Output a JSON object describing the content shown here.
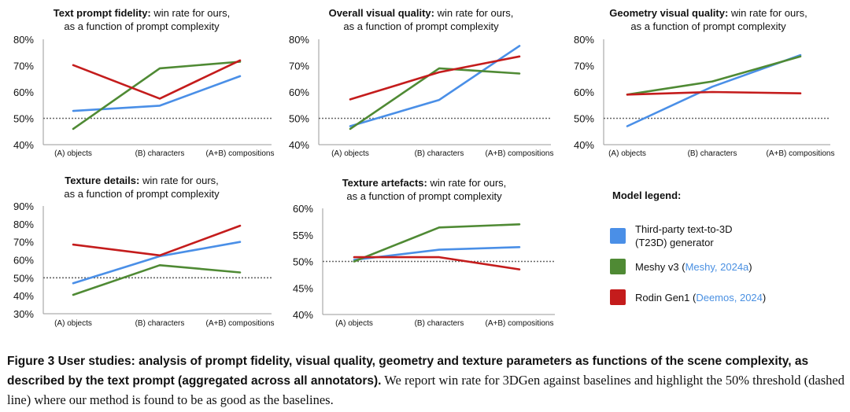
{
  "colors": {
    "third_party": "#4a8fe7",
    "meshy": "#4f8a34",
    "rodin": "#c41c1c",
    "threshold": "#666666",
    "axis": "#999999"
  },
  "chart_data": [
    {
      "type": "line",
      "title_bold": "Text prompt fidelity:",
      "title_rest": " win rate for ours,",
      "title_line2": "as a function of prompt complexity",
      "categories": [
        "(A) objects",
        "(B) characters",
        "(A+B) compositions"
      ],
      "yticks": [
        "40%",
        "50%",
        "60%",
        "70%",
        "80%"
      ],
      "ylim": [
        40,
        80
      ],
      "threshold": 50,
      "series": [
        {
          "name": "Third-party T23D",
          "key": "third_party",
          "values": [
            52.8,
            54.8,
            66.0
          ]
        },
        {
          "name": "Meshy v3",
          "key": "meshy",
          "values": [
            46.0,
            69.0,
            71.5
          ]
        },
        {
          "name": "Rodin Gen1",
          "key": "rodin",
          "values": [
            70.2,
            57.5,
            72.0
          ]
        }
      ]
    },
    {
      "type": "line",
      "title_bold": "Overall visual quality:",
      "title_rest": " win rate for ours,",
      "title_line2": "as a function of prompt complexity",
      "categories": [
        "(A) objects",
        "(B) characters",
        "(A+B) compositions"
      ],
      "yticks": [
        "40%",
        "50%",
        "60%",
        "70%",
        "80%"
      ],
      "ylim": [
        40,
        80
      ],
      "threshold": 50,
      "series": [
        {
          "name": "Third-party T23D",
          "key": "third_party",
          "values": [
            47.0,
            57.0,
            77.5
          ]
        },
        {
          "name": "Meshy v3",
          "key": "meshy",
          "values": [
            46.0,
            69.0,
            67.0
          ]
        },
        {
          "name": "Rodin Gen1",
          "key": "rodin",
          "values": [
            57.2,
            67.5,
            73.5
          ]
        }
      ]
    },
    {
      "type": "line",
      "title_bold": "Geometry visual quality:",
      "title_rest": " win rate for ours,",
      "title_line2": "as a function of prompt complexity",
      "categories": [
        "(A) objects",
        "(B) characters",
        "(A+B) compositions"
      ],
      "yticks": [
        "40%",
        "50%",
        "60%",
        "70%",
        "80%"
      ],
      "ylim": [
        40,
        80
      ],
      "threshold": 50,
      "series": [
        {
          "name": "Third-party T23D",
          "key": "third_party",
          "values": [
            47.0,
            62.0,
            74.0
          ]
        },
        {
          "name": "Meshy v3",
          "key": "meshy",
          "values": [
            59.0,
            64.0,
            73.5
          ]
        },
        {
          "name": "Rodin Gen1",
          "key": "rodin",
          "values": [
            59.0,
            60.0,
            59.5
          ]
        }
      ]
    },
    {
      "type": "line",
      "title_bold": "Texture details:",
      "title_rest": " win rate for ours,",
      "title_line2": "as a function of prompt complexity",
      "categories": [
        "(A) objects",
        "(B) characters",
        "(A+B) compositions"
      ],
      "yticks": [
        "30%",
        "40%",
        "50%",
        "60%",
        "70%",
        "80%",
        "90%"
      ],
      "ylim": [
        30,
        90
      ],
      "threshold": 50,
      "series": [
        {
          "name": "Third-party T23D",
          "key": "third_party",
          "values": [
            47.0,
            62.0,
            70.0
          ]
        },
        {
          "name": "Meshy v3",
          "key": "meshy",
          "values": [
            40.5,
            57.0,
            53.0
          ]
        },
        {
          "name": "Rodin Gen1",
          "key": "rodin",
          "values": [
            68.5,
            62.5,
            79.0
          ]
        }
      ]
    },
    {
      "type": "line",
      "title_bold": "Texture artefacts:",
      "title_rest": " win rate for ours,",
      "title_line2": "as a function of prompt complexity",
      "categories": [
        "(A) objects",
        "(B) characters",
        "(A+B) compositions"
      ],
      "yticks": [
        "40%",
        "45%",
        "50%",
        "55%",
        "60%"
      ],
      "ylim": [
        40,
        60
      ],
      "threshold": 50,
      "series": [
        {
          "name": "Third-party T23D",
          "key": "third_party",
          "values": [
            50.3,
            52.2,
            52.7
          ]
        },
        {
          "name": "Meshy v3",
          "key": "meshy",
          "values": [
            50.0,
            56.4,
            57.0
          ]
        },
        {
          "name": "Rodin Gen1",
          "key": "rodin",
          "values": [
            50.8,
            50.8,
            48.5
          ]
        }
      ]
    }
  ],
  "legend": {
    "title": "Model legend:",
    "items": [
      {
        "line1": "Third-party text-to-3D",
        "line2": "(T23D) generator",
        "cite": "",
        "tail": ""
      },
      {
        "line1": "Meshy v3 (",
        "line2": "",
        "cite": "Meshy, 2024a",
        "tail": ")"
      },
      {
        "line1": "Rodin Gen1 (",
        "line2": "",
        "cite": "Deemos, 2024",
        "tail": ")"
      }
    ]
  },
  "caption": {
    "lead": "Figure 3  User studies: analysis of prompt fidelity, visual quality, geometry and texture parameters as functions of the scene complexity, as described by the text prompt (aggregated across all annotators).",
    "body": " We report win rate for 3DGen against baselines and highlight the 50% threshold (dashed line) where our method is found to be as good as the baselines."
  }
}
